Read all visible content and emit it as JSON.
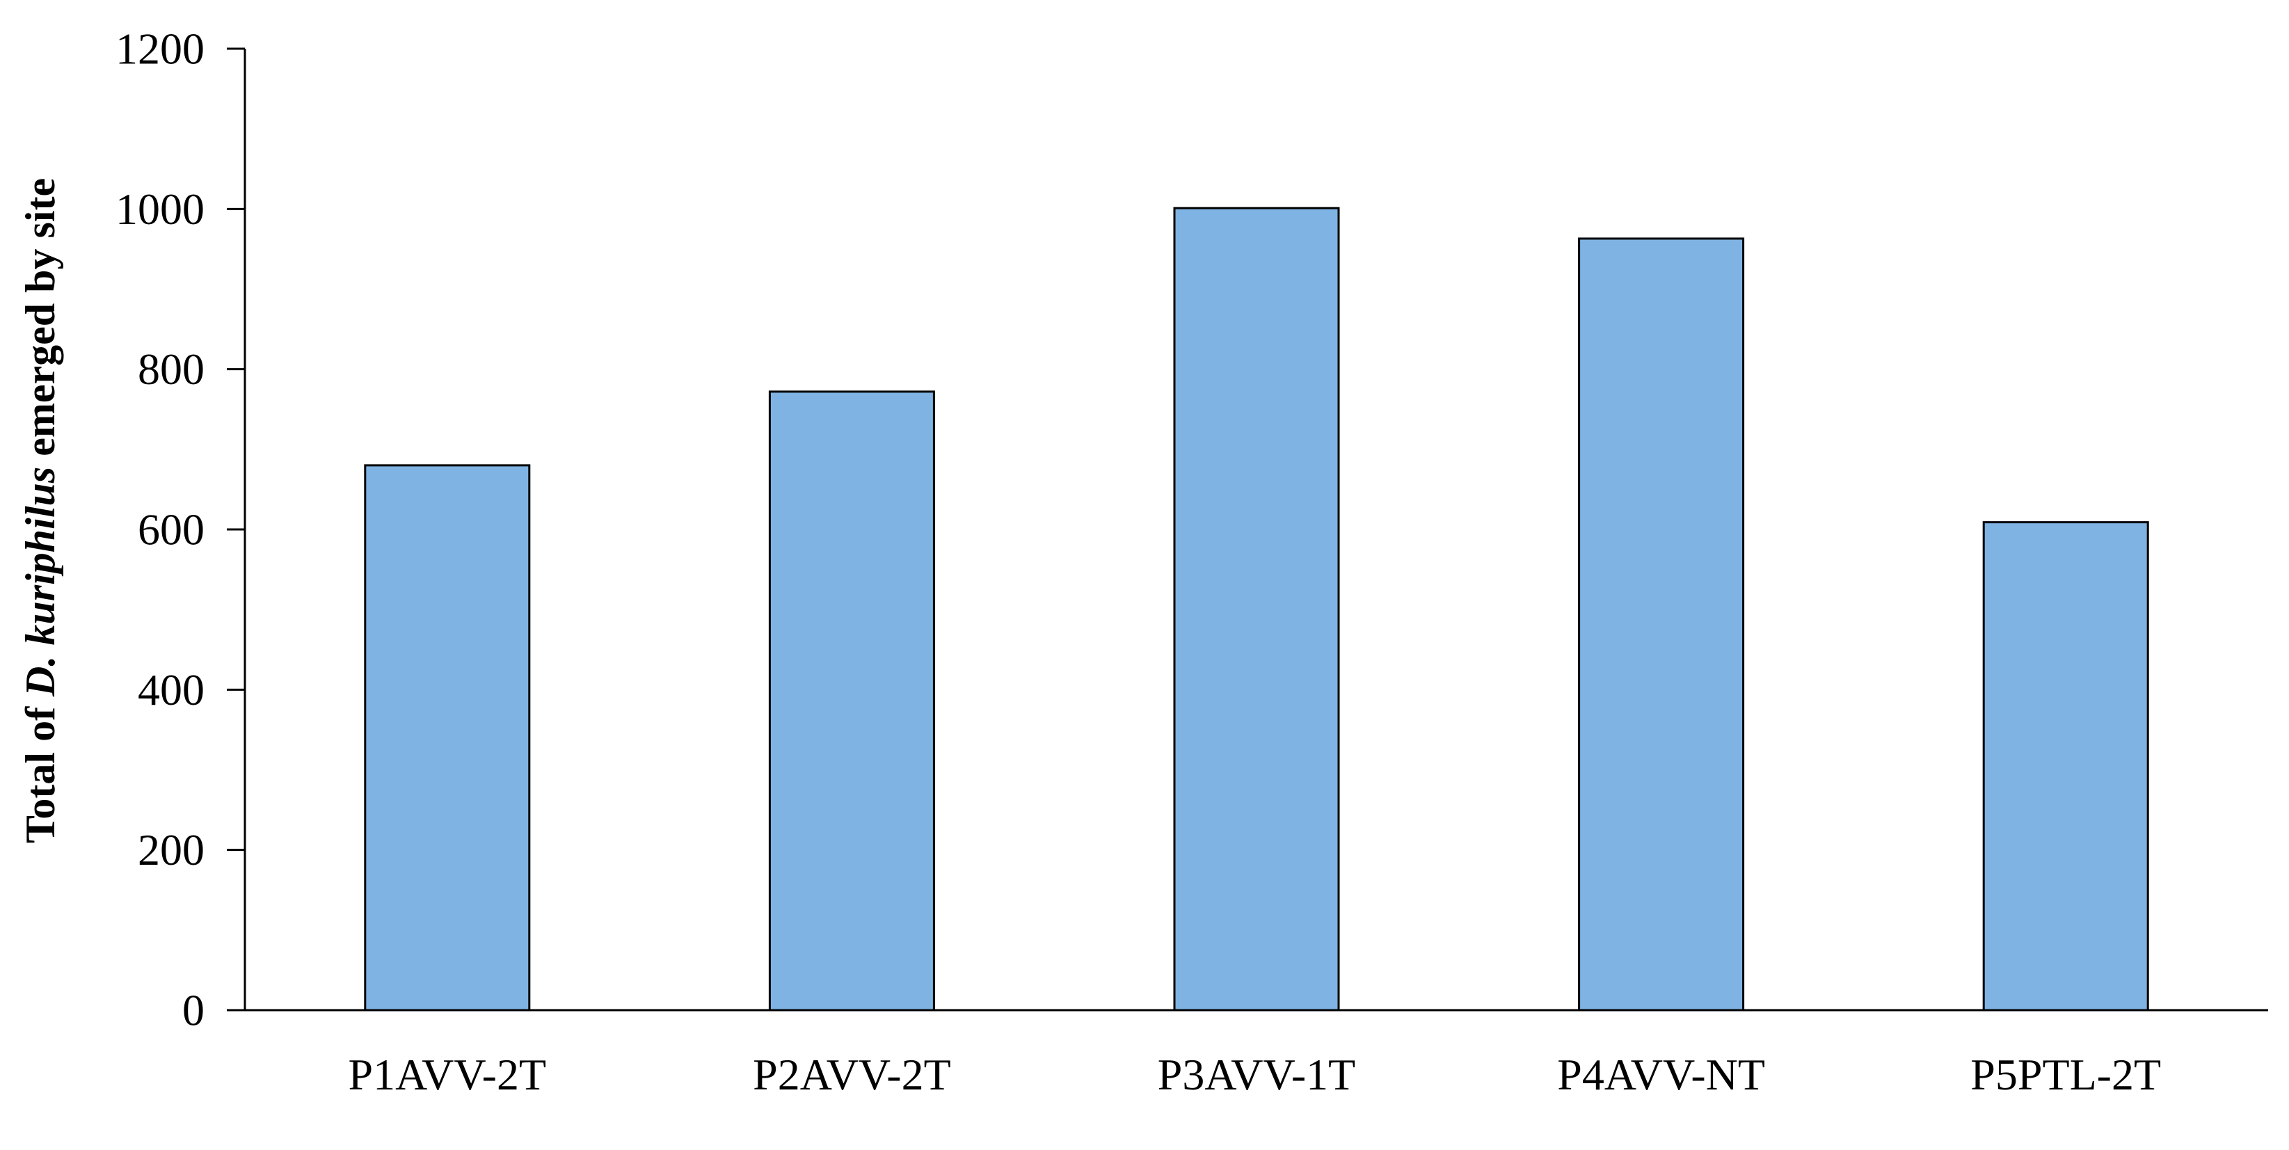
{
  "chart_data": {
    "type": "bar",
    "categories": [
      "P1AVV-2T",
      "P2AVV-2T",
      "P3AVV-1T",
      "P4AVV-NT",
      "P5PTL-2T"
    ],
    "values": [
      680,
      772,
      1001,
      963,
      609
    ],
    "ylabel_parts": {
      "prefix": "Total of ",
      "italic": "D. kuriphilus",
      "suffix": " emerged by site"
    },
    "xlabel": "",
    "ylim": [
      0,
      1200
    ],
    "yticks": [
      "0",
      "200",
      "400",
      "600",
      "800",
      "1000",
      "1200"
    ],
    "grid": false,
    "colors": {
      "bar_fill": "#7fb3e3",
      "bar_stroke": "#000000",
      "axis": "#000000"
    }
  }
}
